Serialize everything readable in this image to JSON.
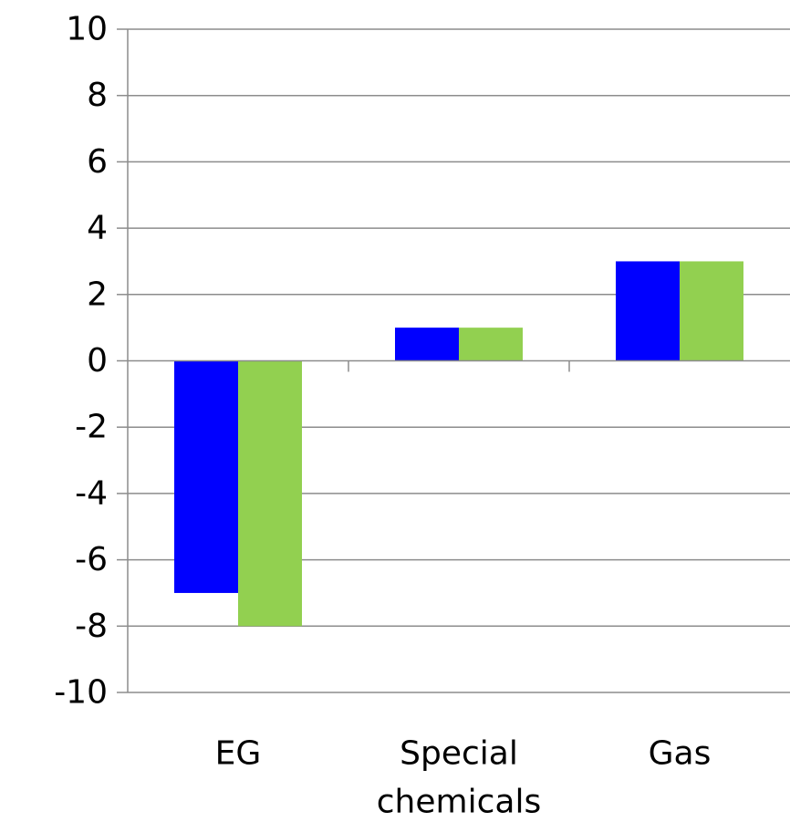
{
  "chart_data": {
    "type": "bar",
    "categories": [
      [
        "EG"
      ],
      [
        "Special",
        "chemicals"
      ],
      [
        "Gas"
      ]
    ],
    "series": [
      {
        "color": "#0000ff",
        "values": [
          -7,
          1,
          3
        ]
      },
      {
        "color": "#92d050",
        "values": [
          -8,
          1,
          3
        ]
      }
    ],
    "ylim": [
      -10,
      10
    ],
    "yticks": [
      10,
      8,
      6,
      4,
      2,
      0,
      -2,
      -4,
      -6,
      -8,
      -10
    ],
    "grid": true,
    "legend": "none"
  }
}
